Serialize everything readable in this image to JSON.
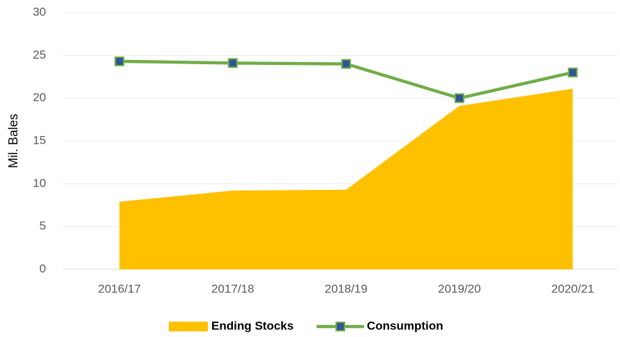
{
  "chart_data": {
    "type": "area-line",
    "y_label": "Mil. Bales",
    "categories": [
      "2016/17",
      "2017/18",
      "2018/19",
      "2019/20",
      "2020/21"
    ],
    "series": [
      {
        "name": "Ending Stocks",
        "type": "area",
        "color": "#FFC000",
        "values": [
          7.9,
          9.2,
          9.3,
          19.1,
          21.1
        ]
      },
      {
        "name": "Consumption",
        "type": "line",
        "color": "#70AD47",
        "marker_color": "#2F5597",
        "values": [
          24.3,
          24.1,
          24.0,
          20.0,
          23.0
        ]
      }
    ],
    "ylim": [
      0,
      30
    ],
    "yticks": [
      0,
      5,
      10,
      15,
      20,
      25,
      30
    ],
    "grid": true,
    "legend": "bottom"
  }
}
